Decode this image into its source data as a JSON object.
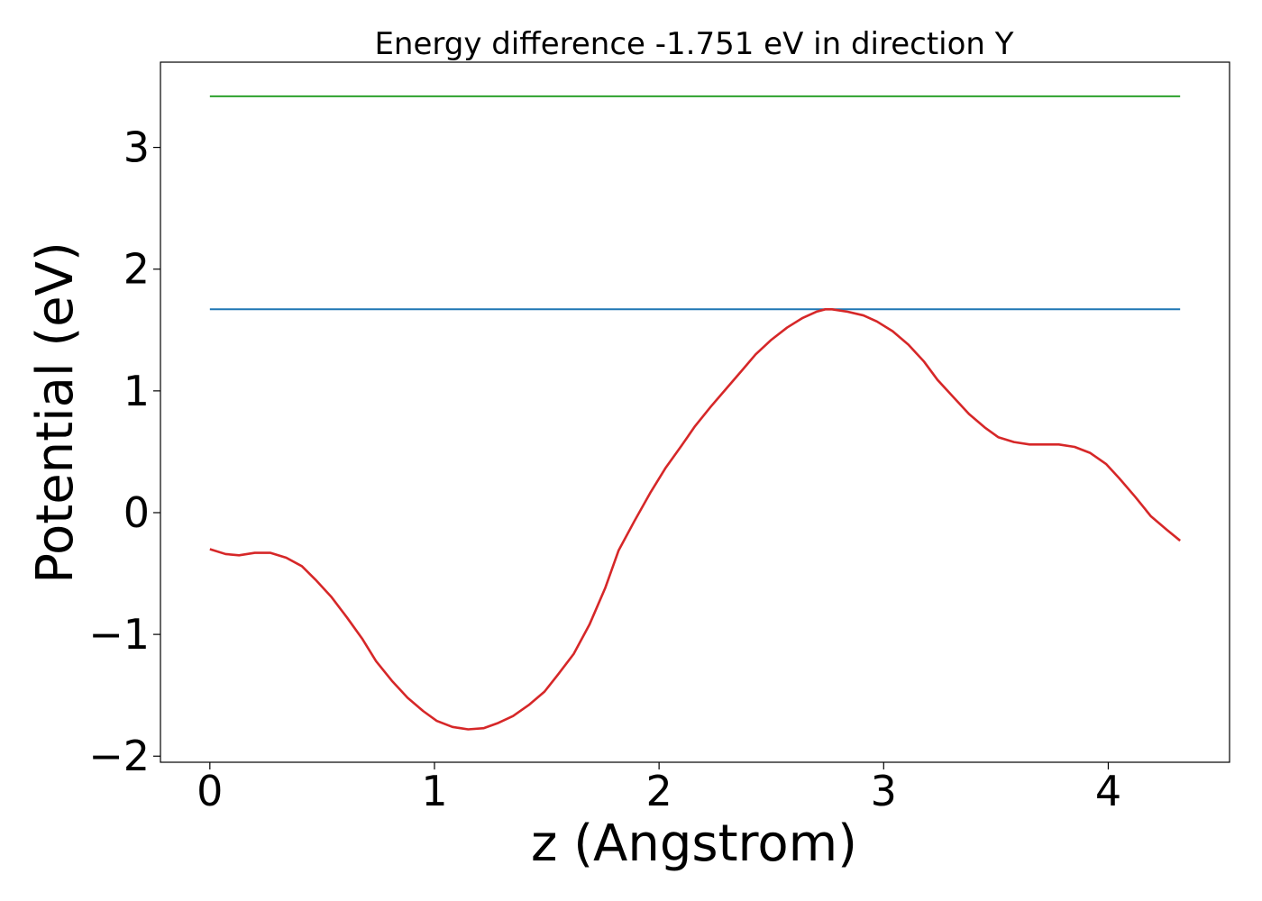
{
  "chart_data": {
    "type": "line",
    "title": "Energy difference -1.751 eV in direction Y",
    "xlabel": "z (Angstrom)",
    "ylabel": "Potential (eV)",
    "xlim": [
      -0.22,
      4.54
    ],
    "ylim": [
      -2.05,
      3.7
    ],
    "x_ticks": [
      0,
      1,
      2,
      3,
      4
    ],
    "x_tick_labels": [
      "0",
      "1",
      "2",
      "3",
      "4"
    ],
    "y_ticks": [
      -2,
      -1,
      0,
      1,
      2,
      3
    ],
    "y_tick_labels": [
      "−2",
      "−1",
      "0",
      "1",
      "2",
      "3"
    ],
    "grid": false,
    "series": [
      {
        "color": "#2ca02c",
        "x": [
          0,
          4.32
        ],
        "y": [
          3.42,
          3.42
        ]
      },
      {
        "color": "#1f77b4",
        "x": [
          0,
          4.32
        ],
        "y": [
          1.67,
          1.67
        ]
      },
      {
        "color": "#d62728",
        "x": [
          0.0,
          0.07,
          0.13,
          0.2,
          0.27,
          0.34,
          0.41,
          0.47,
          0.54,
          0.61,
          0.68,
          0.74,
          0.81,
          0.88,
          0.95,
          1.01,
          1.08,
          1.15,
          1.22,
          1.28,
          1.35,
          1.42,
          1.49,
          1.55,
          1.62,
          1.69,
          1.76,
          1.82,
          1.89,
          1.96,
          2.03,
          2.1,
          2.16,
          2.23,
          2.3,
          2.37,
          2.43,
          2.5,
          2.57,
          2.64,
          2.7,
          2.74,
          2.77,
          2.84,
          2.91,
          2.97,
          3.04,
          3.11,
          3.18,
          3.24,
          3.31,
          3.38,
          3.45,
          3.51,
          3.58,
          3.65,
          3.72,
          3.78,
          3.85,
          3.92,
          3.99,
          4.05,
          4.12,
          4.19,
          4.26,
          4.32
        ],
        "y": [
          -0.3,
          -0.34,
          -0.35,
          -0.33,
          -0.33,
          -0.37,
          -0.44,
          -0.55,
          -0.69,
          -0.86,
          -1.04,
          -1.22,
          -1.38,
          -1.52,
          -1.63,
          -1.71,
          -1.76,
          -1.78,
          -1.77,
          -1.73,
          -1.67,
          -1.58,
          -1.47,
          -1.33,
          -1.16,
          -0.92,
          -0.62,
          -0.31,
          -0.07,
          0.16,
          0.37,
          0.55,
          0.71,
          0.87,
          1.02,
          1.17,
          1.3,
          1.42,
          1.52,
          1.6,
          1.65,
          1.67,
          1.67,
          1.65,
          1.62,
          1.57,
          1.49,
          1.38,
          1.24,
          1.09,
          0.95,
          0.81,
          0.7,
          0.62,
          0.58,
          0.56,
          0.56,
          0.56,
          0.54,
          0.49,
          0.4,
          0.28,
          0.13,
          -0.03,
          -0.14,
          -0.23
        ]
      }
    ]
  }
}
